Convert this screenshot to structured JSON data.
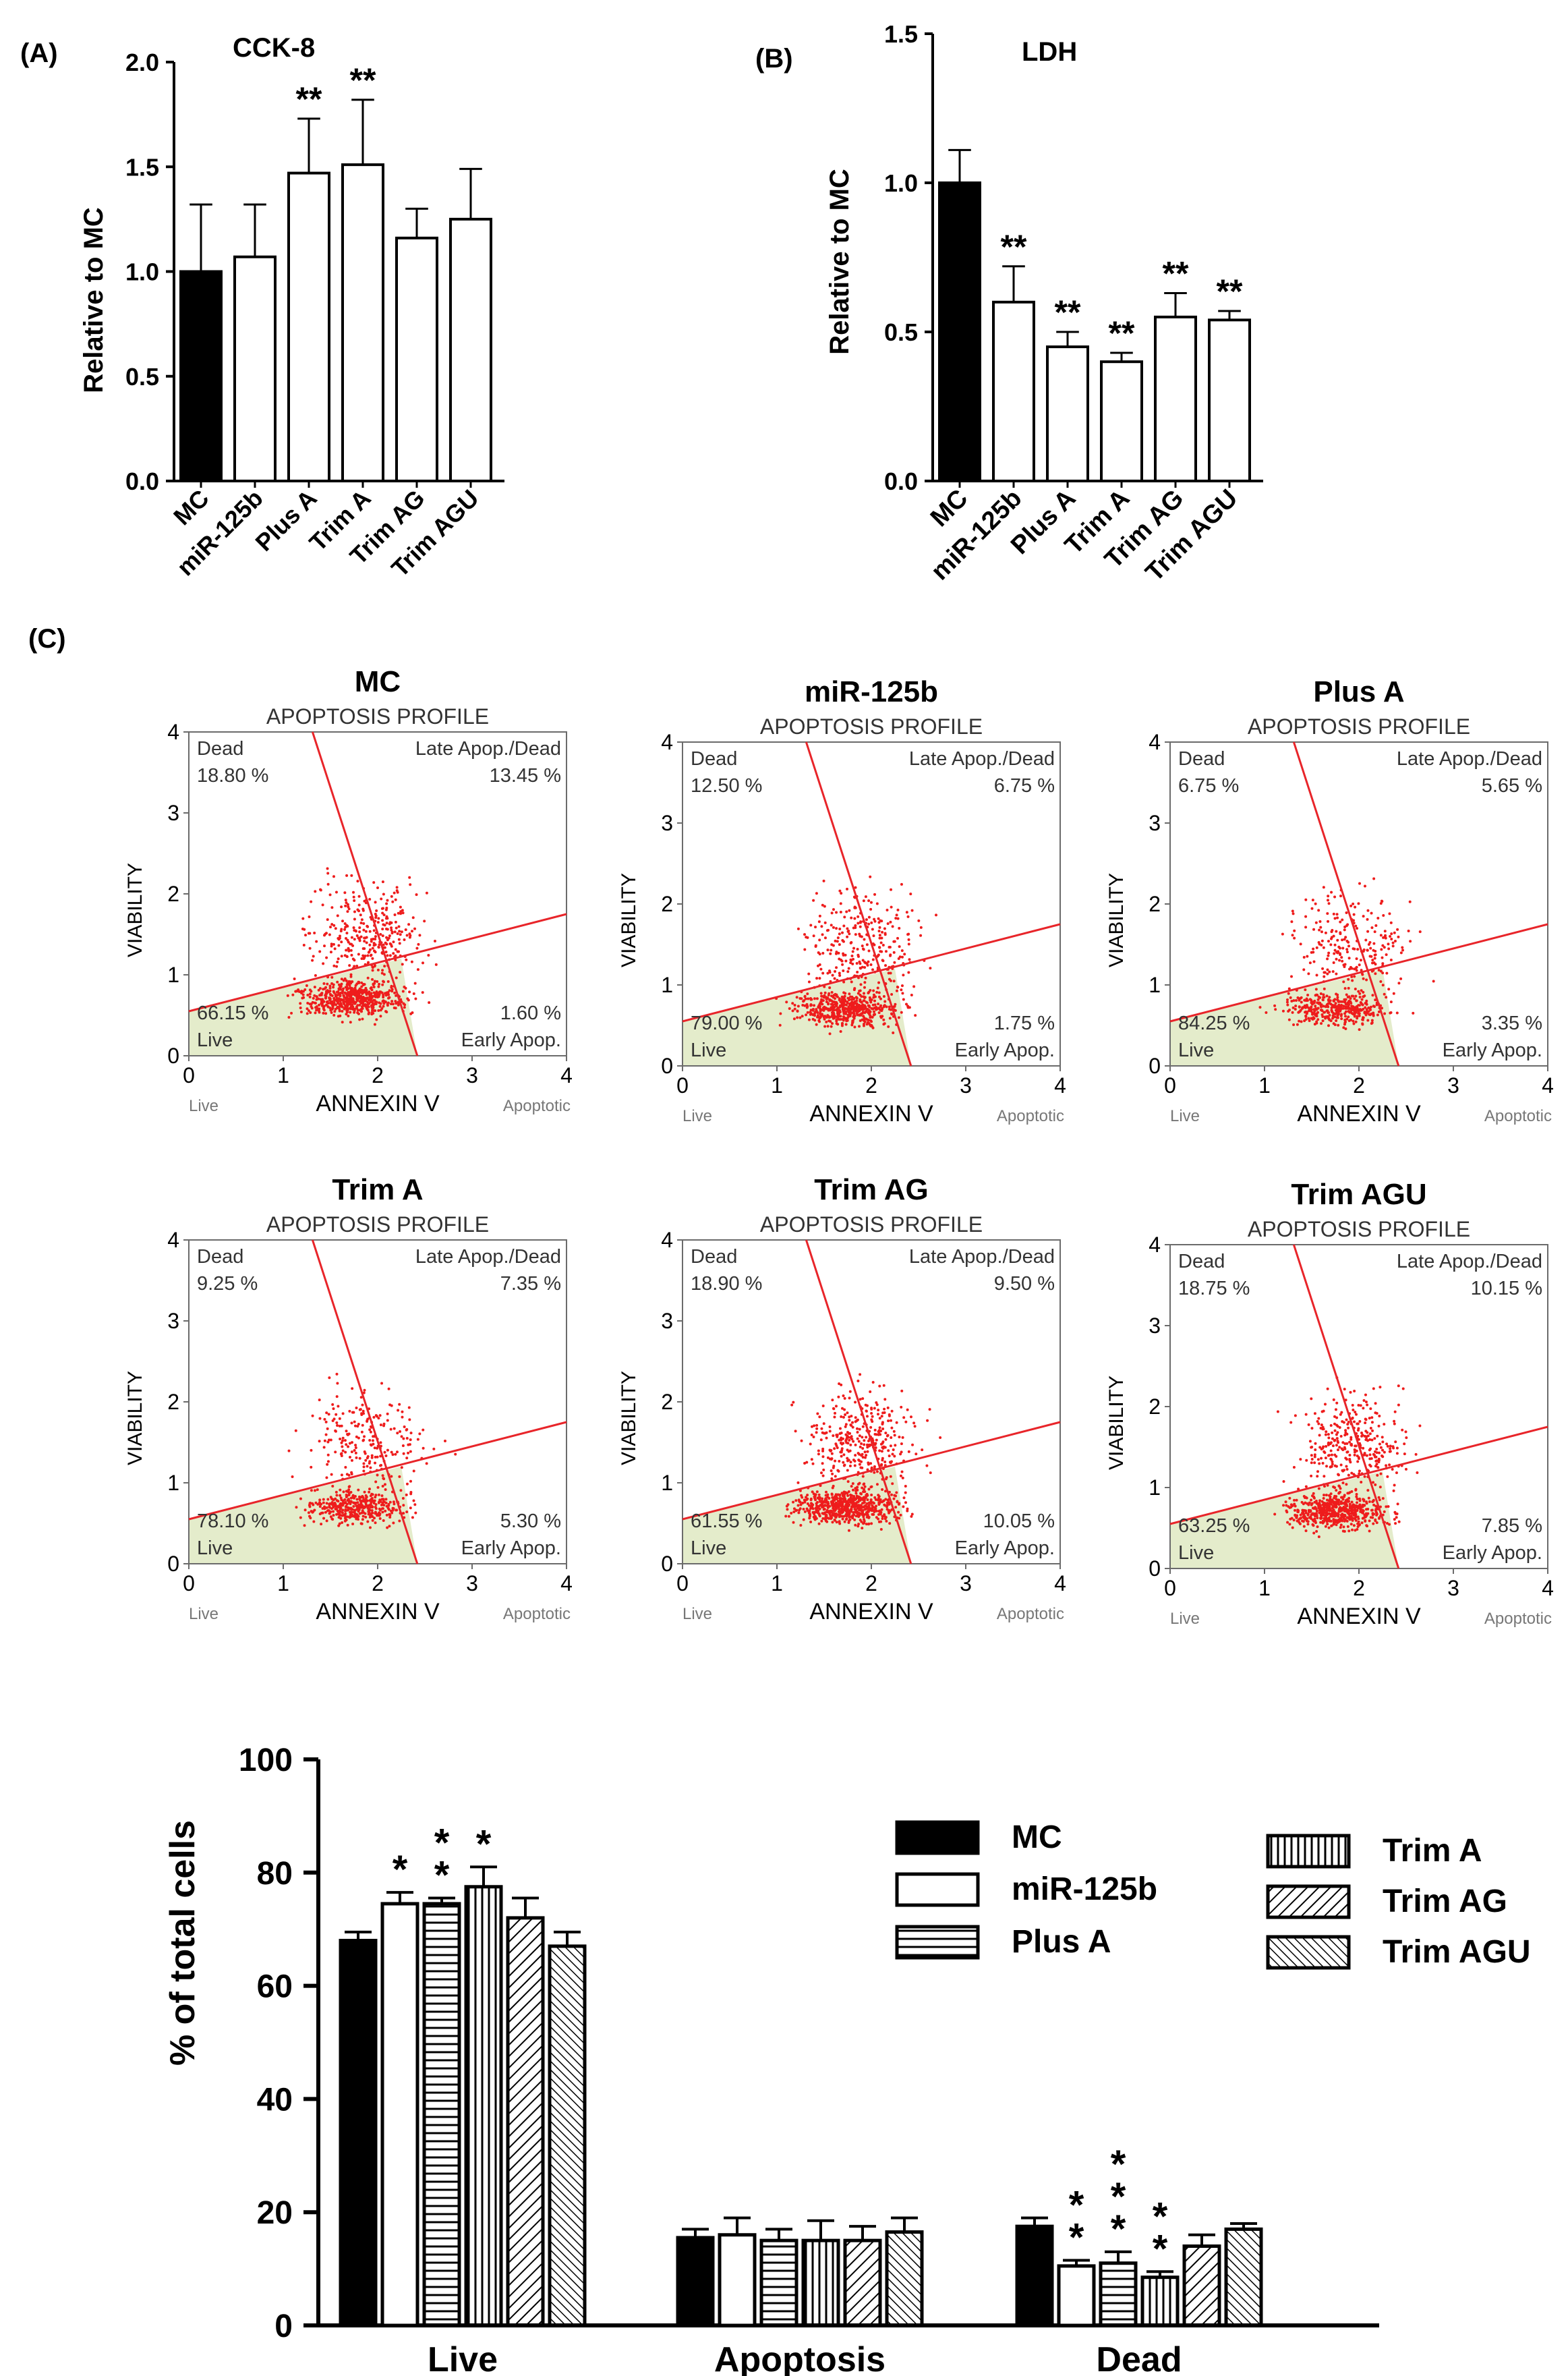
{
  "panel_labels": {
    "a": "(A)",
    "b": "(B)",
    "c": "(C)"
  },
  "colors": {
    "bar_mc": "#000000",
    "bar_outline": "#000000",
    "bar_fill": "#ffffff",
    "dot": "#ee1c1c",
    "quadrant_line": "#e8252a",
    "live_fill": "#e4eccb",
    "frame": "#6b6b6b",
    "flow_text": "#333333"
  },
  "significance": {
    "double": "**",
    "single": "*"
  },
  "chart_data": [
    {
      "id": "cck8",
      "type": "bar",
      "title": "CCK-8",
      "ylabel": "Relative to  MC",
      "xlabel": "",
      "categories": [
        "MC",
        "miR-125b",
        "Plus A",
        "Trim A",
        "Trim AG",
        "Trim AGU"
      ],
      "values": [
        1.0,
        1.07,
        1.47,
        1.51,
        1.16,
        1.25
      ],
      "errors": [
        0.32,
        0.25,
        0.26,
        0.31,
        0.14,
        0.24
      ],
      "significance": [
        "",
        "",
        "**",
        "**",
        "",
        ""
      ],
      "ylim": [
        0,
        2.0
      ],
      "yticks": [
        "0.0",
        "0.5",
        "1.0",
        "1.5",
        "2.0"
      ],
      "ytick_values": [
        0,
        0.5,
        1.0,
        1.5,
        2.0
      ]
    },
    {
      "id": "ldh",
      "type": "bar",
      "title": "LDH",
      "ylabel": "Relative to MC",
      "xlabel": "",
      "categories": [
        "MC",
        "miR-125b",
        "Plus A",
        "Trim A",
        "Trim AG",
        "Trim AGU"
      ],
      "values": [
        1.0,
        0.6,
        0.45,
        0.4,
        0.55,
        0.54
      ],
      "errors": [
        0.11,
        0.12,
        0.05,
        0.03,
        0.08,
        0.03
      ],
      "significance": [
        "",
        "**",
        "**",
        "**",
        "**",
        "**"
      ],
      "ylim": [
        0,
        1.5
      ],
      "yticks": [
        "0.0",
        "0.5",
        "1.0",
        "1.5"
      ],
      "ytick_values": [
        0,
        0.5,
        1.0,
        1.5
      ]
    },
    {
      "id": "flow",
      "type": "scatter",
      "plot_title": "APOPTOSIS PROFILE",
      "xlabel": "ANNEXIN V",
      "ylabel": "VIABILITY",
      "x_left_note": "Live",
      "x_right_note": "Apoptotic",
      "ticks": [
        "0",
        "1",
        "2",
        "3",
        "4"
      ],
      "quadrant_names": {
        "dead": "Dead",
        "late": "Late Apop./Dead",
        "live": "Live",
        "early": "Early Apop."
      },
      "panels": [
        {
          "name": "MC",
          "dead": "18.80 %",
          "late": "13.45 %",
          "live": "66.15 %",
          "early": "1.60 %",
          "density": 1.0
        },
        {
          "name": "miR-125b",
          "dead": "12.50 %",
          "late": "6.75 %",
          "live": "79.00 %",
          "early": "1.75 %",
          "density": 0.9
        },
        {
          "name": "Plus A",
          "dead": "6.75 %",
          "late": "5.65 %",
          "live": "84.25 %",
          "early": "3.35 %",
          "density": 0.7
        },
        {
          "name": "Trim A",
          "dead": "9.25 %",
          "late": "7.35 %",
          "live": "78.10 %",
          "early": "5.30 %",
          "density": 0.7
        },
        {
          "name": "Trim AG",
          "dead": "18.90 %",
          "late": "9.50 %",
          "live": "61.55 %",
          "early": "10.05 %",
          "density": 1.1
        },
        {
          "name": "Trim AGU",
          "dead": "18.75 %",
          "late": "10.15 %",
          "live": "63.25 %",
          "early": "7.85 %",
          "density": 1.0
        }
      ]
    },
    {
      "id": "percent",
      "type": "bar",
      "ylabel": "% of total cells",
      "xlabel": "",
      "categories": [
        "Live",
        "Apoptosis",
        "Dead"
      ],
      "series": [
        {
          "name": "MC",
          "values": [
            68,
            15.5,
            17.5
          ],
          "errors": [
            1.5,
            1.5,
            1.5
          ],
          "sig": [
            "",
            "",
            ""
          ]
        },
        {
          "name": "miR-125b",
          "values": [
            74.5,
            16,
            10.5
          ],
          "errors": [
            2,
            3,
            1
          ],
          "sig": [
            "*",
            "",
            "**"
          ]
        },
        {
          "name": "Plus A",
          "values": [
            74.5,
            15,
            11
          ],
          "errors": [
            1,
            2,
            2
          ],
          "sig": [
            "**",
            "",
            "***"
          ]
        },
        {
          "name": "Trim A",
          "values": [
            77.5,
            15,
            8.5
          ],
          "errors": [
            3.5,
            3.5,
            1
          ],
          "sig": [
            "*",
            "",
            "**"
          ]
        },
        {
          "name": "Trim AG",
          "values": [
            72,
            15,
            14
          ],
          "errors": [
            3.5,
            2.5,
            2
          ],
          "sig": [
            "",
            "",
            ""
          ]
        },
        {
          "name": "Trim AGU",
          "values": [
            67,
            16.5,
            17
          ],
          "errors": [
            2.5,
            2.5,
            1
          ],
          "sig": [
            "",
            "",
            ""
          ]
        }
      ],
      "ylim": [
        0,
        100
      ],
      "yticks": [
        "0",
        "20",
        "40",
        "60",
        "80",
        "100"
      ],
      "ytick_values": [
        0,
        20,
        40,
        60,
        80,
        100
      ]
    }
  ]
}
